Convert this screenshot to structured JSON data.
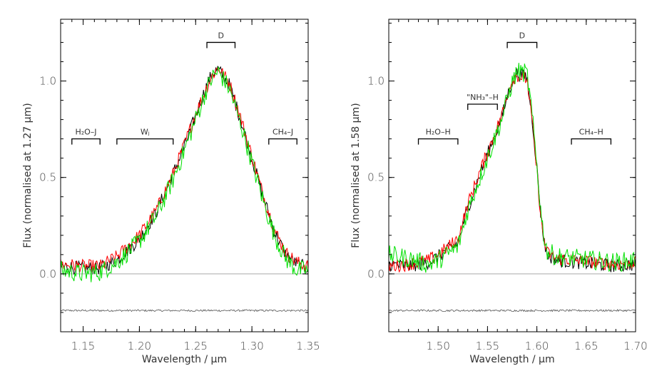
{
  "chart_data": [
    {
      "type": "line",
      "xlabel": "Wavelength / μm",
      "ylabel": "Flux (normalised at 1.27 μm)",
      "xlim": [
        1.13,
        1.35
      ],
      "ylim": [
        -0.3,
        1.32
      ],
      "x_ticks": [
        1.15,
        1.2,
        1.25,
        1.3,
        1.35
      ],
      "x_tick_labels": [
        "1.15",
        "1.20",
        "1.25",
        "1.30",
        "1.35"
      ],
      "y_ticks": [
        0.0,
        0.5,
        1.0
      ],
      "y_tick_labels": [
        "0.0",
        "0.5",
        "1.0"
      ],
      "zero_line": 0.0,
      "series": [
        {
          "name": "black",
          "color": "#000000",
          "x": [
            1.13,
            1.15,
            1.165,
            1.18,
            1.2,
            1.215,
            1.23,
            1.24,
            1.25,
            1.26,
            1.265,
            1.27,
            1.28,
            1.29,
            1.3,
            1.31,
            1.32,
            1.33,
            1.34,
            1.35
          ],
          "y": [
            0.04,
            0.03,
            0.03,
            0.07,
            0.18,
            0.32,
            0.52,
            0.66,
            0.82,
            0.98,
            1.04,
            1.06,
            0.98,
            0.8,
            0.6,
            0.4,
            0.22,
            0.1,
            0.05,
            0.03
          ]
        },
        {
          "name": "red",
          "color": "#ff0000",
          "x": [
            1.13,
            1.15,
            1.165,
            1.18,
            1.2,
            1.215,
            1.23,
            1.24,
            1.25,
            1.26,
            1.265,
            1.27,
            1.28,
            1.29,
            1.3,
            1.31,
            1.32,
            1.33,
            1.34,
            1.35
          ],
          "y": [
            0.05,
            0.04,
            0.04,
            0.09,
            0.2,
            0.33,
            0.52,
            0.67,
            0.83,
            0.97,
            1.03,
            1.07,
            0.99,
            0.81,
            0.61,
            0.41,
            0.23,
            0.11,
            0.06,
            0.04
          ]
        },
        {
          "name": "green",
          "color": "#00e000",
          "x": [
            1.13,
            1.15,
            1.165,
            1.18,
            1.2,
            1.215,
            1.23,
            1.24,
            1.25,
            1.26,
            1.265,
            1.27,
            1.28,
            1.29,
            1.3,
            1.31,
            1.32,
            1.33,
            1.34,
            1.35
          ],
          "y": [
            0.02,
            0.0,
            0.01,
            0.06,
            0.17,
            0.3,
            0.49,
            0.64,
            0.8,
            0.96,
            1.02,
            1.05,
            0.96,
            0.78,
            0.58,
            0.38,
            0.2,
            0.08,
            0.02,
            0.02
          ]
        }
      ],
      "noise_level": -0.19,
      "annotations": [
        {
          "label": "H₂O–J",
          "x0": 1.14,
          "x1": 1.165,
          "y": 0.7,
          "dir": "down"
        },
        {
          "label": "Wⱼ",
          "x0": 1.18,
          "x1": 1.23,
          "y": 0.7,
          "dir": "down"
        },
        {
          "label": "CH₄–J",
          "x0": 1.315,
          "x1": 1.34,
          "y": 0.7,
          "dir": "down"
        },
        {
          "label": "D",
          "x0": 1.26,
          "x1": 1.285,
          "y": 1.2,
          "dir": "up"
        }
      ]
    },
    {
      "type": "line",
      "xlabel": "Wavelength / μm",
      "ylabel": "Flux (normalised at 1.58 μm)",
      "xlim": [
        1.45,
        1.7
      ],
      "ylim": [
        -0.3,
        1.32
      ],
      "x_ticks": [
        1.5,
        1.55,
        1.6,
        1.65,
        1.7
      ],
      "x_tick_labels": [
        "1.50",
        "1.55",
        "1.60",
        "1.65",
        "1.70"
      ],
      "y_ticks": [
        0.0,
        0.5,
        1.0
      ],
      "y_tick_labels": [
        "0.0",
        "0.5",
        "1.0"
      ],
      "zero_line": 0.0,
      "series": [
        {
          "name": "black",
          "color": "#000000",
          "x": [
            1.45,
            1.47,
            1.49,
            1.5,
            1.52,
            1.53,
            1.54,
            1.55,
            1.56,
            1.565,
            1.57,
            1.575,
            1.58,
            1.59,
            1.595,
            1.6,
            1.605,
            1.61,
            1.62,
            1.64,
            1.66,
            1.68,
            1.7
          ],
          "y": [
            0.05,
            0.04,
            0.06,
            0.09,
            0.16,
            0.34,
            0.48,
            0.62,
            0.75,
            0.82,
            0.92,
            1.0,
            1.04,
            1.02,
            0.82,
            0.55,
            0.25,
            0.1,
            0.07,
            0.06,
            0.05,
            0.04,
            0.05
          ]
        },
        {
          "name": "red",
          "color": "#ff0000",
          "x": [
            1.45,
            1.47,
            1.49,
            1.5,
            1.52,
            1.53,
            1.54,
            1.55,
            1.56,
            1.565,
            1.57,
            1.575,
            1.58,
            1.59,
            1.595,
            1.6,
            1.605,
            1.61,
            1.62,
            1.64,
            1.66,
            1.68,
            1.7
          ],
          "y": [
            0.04,
            0.05,
            0.07,
            0.1,
            0.18,
            0.36,
            0.5,
            0.63,
            0.76,
            0.83,
            0.93,
            1.01,
            1.03,
            1.01,
            0.8,
            0.53,
            0.24,
            0.11,
            0.08,
            0.07,
            0.06,
            0.05,
            0.06
          ]
        },
        {
          "name": "green",
          "color": "#00e000",
          "x": [
            1.45,
            1.47,
            1.49,
            1.5,
            1.52,
            1.53,
            1.54,
            1.55,
            1.56,
            1.565,
            1.57,
            1.575,
            1.58,
            1.59,
            1.595,
            1.6,
            1.605,
            1.61,
            1.62,
            1.64,
            1.66,
            1.68,
            1.7
          ],
          "y": [
            0.1,
            0.08,
            0.05,
            0.07,
            0.14,
            0.33,
            0.47,
            0.6,
            0.74,
            0.81,
            0.91,
            0.99,
            1.05,
            1.04,
            0.83,
            0.56,
            0.27,
            0.12,
            0.09,
            0.08,
            0.07,
            0.06,
            0.07
          ]
        }
      ],
      "noise_level": -0.19,
      "annotations": [
        {
          "label": "H₂O–H",
          "x0": 1.48,
          "x1": 1.52,
          "y": 0.7,
          "dir": "down"
        },
        {
          "label": "\"NH₃\"–H",
          "x0": 1.53,
          "x1": 1.56,
          "y": 0.88,
          "dir": "down"
        },
        {
          "label": "CH₄–H",
          "x0": 1.635,
          "x1": 1.675,
          "y": 0.7,
          "dir": "down"
        },
        {
          "label": "D",
          "x0": 1.57,
          "x1": 1.6,
          "y": 1.2,
          "dir": "up"
        }
      ]
    }
  ]
}
